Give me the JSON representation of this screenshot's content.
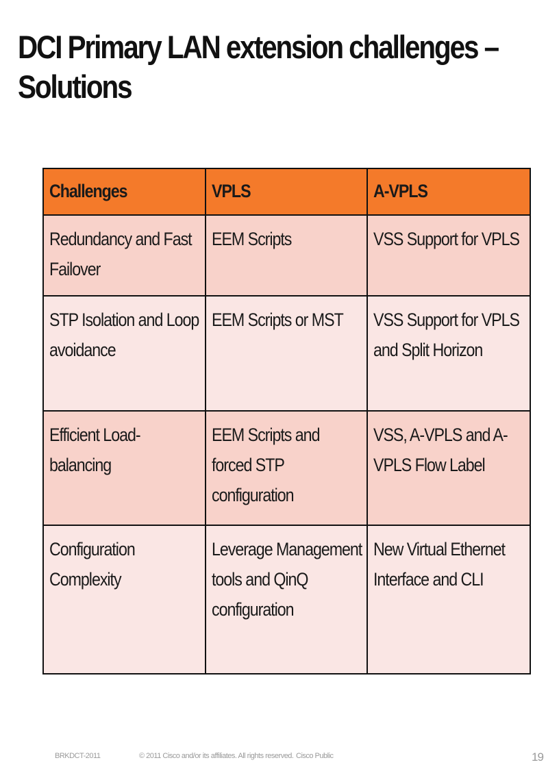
{
  "slide": {
    "title": "DCI Primary LAN extension challenges – Solutions",
    "page_number": "19"
  },
  "colors": {
    "header_bg": "#f47a2a",
    "row_dark_bg": "#f8d2ca",
    "row_light_bg": "#fae6e4",
    "border": "#111111",
    "footer_text": "#9a9a9a"
  },
  "table": {
    "headers": [
      "Challenges",
      "VPLS",
      "A-VPLS"
    ],
    "rows": [
      [
        "Redundancy and Fast Failover",
        "EEM Scripts",
        "VSS Support for VPLS"
      ],
      [
        "STP Isolation and Loop avoidance",
        "EEM Scripts or MST",
        "VSS Support for VPLS and Split Horizon"
      ],
      [
        "Efficient Load-balancing",
        "EEM Scripts and forced STP configuration",
        "VSS, A-VPLS and A-VPLS Flow Label"
      ],
      [
        "Configuration Complexity",
        "Leverage Management tools and QinQ configuration",
        "New Virtual Ethernet Interface and CLI"
      ]
    ]
  },
  "footer": {
    "session_id": "BRKDCT-2011",
    "copyright": "© 2011 Cisco and/or its affiliates. All rights reserved.",
    "classification": "Cisco Public"
  }
}
